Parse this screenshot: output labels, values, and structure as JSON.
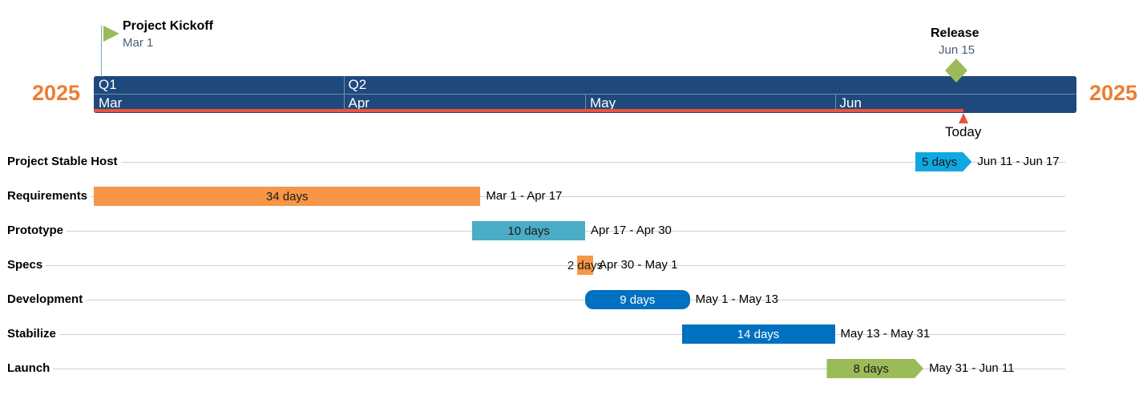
{
  "chart_data": {
    "type": "gantt",
    "year": "2025",
    "quarters": [
      "Q1",
      "Q2"
    ],
    "months": [
      "Mar",
      "Apr",
      "May",
      "Jun"
    ],
    "axis_start": "2025-03-01",
    "axis_end": "2025-06-30",
    "today": {
      "label": "Today",
      "date": "2025-06-20",
      "color": "#e8553a"
    },
    "milestones": [
      {
        "name": "Project Kickoff",
        "date_label": "Mar 1",
        "date": "2025-03-01",
        "shape": "flag",
        "color": "#9bbb59"
      },
      {
        "name": "Release",
        "date_label": "Jun 15",
        "date": "2025-06-15",
        "shape": "diamond",
        "color": "#9bbb59"
      }
    ],
    "tasks": [
      {
        "name": "Project Stable Host",
        "duration": "5 days",
        "range": "Jun 11 - Jun 17",
        "start": "2025-06-11",
        "end": "2025-06-17",
        "color": "#10a8e0",
        "shape": "chevron",
        "text_color": "#1a1a1a"
      },
      {
        "name": "Requirements",
        "duration": "34 days",
        "range": "Mar 1 - Apr 17",
        "start": "2025-03-01",
        "end": "2025-04-17",
        "color": "#f79646",
        "shape": "rect",
        "text_color": "#1a1a1a"
      },
      {
        "name": "Prototype",
        "duration": "10 days",
        "range": "Apr 17 - Apr 30",
        "start": "2025-04-17",
        "end": "2025-04-30",
        "color": "#4bacc6",
        "shape": "rect",
        "text_color": "#1a1a1a"
      },
      {
        "name": "Specs",
        "duration": "2 days",
        "range": "Apr 30 - May 1",
        "start": "2025-04-30",
        "end": "2025-05-01",
        "color": "#f79646",
        "shape": "rect",
        "text_color": "#1a1a1a"
      },
      {
        "name": "Development",
        "duration": "9 days",
        "range": "May 1 - May 13",
        "start": "2025-05-01",
        "end": "2025-05-13",
        "color": "#0070c0",
        "shape": "rounded",
        "text_color": "#ffffff"
      },
      {
        "name": "Stabilize",
        "duration": "14 days",
        "range": "May 13 - May 31",
        "start": "2025-05-13",
        "end": "2025-05-31",
        "color": "#0070c0",
        "shape": "rect",
        "text_color": "#ffffff"
      },
      {
        "name": "Launch",
        "duration": "8 days",
        "range": "May 31 - Jun 11",
        "start": "2025-05-31",
        "end": "2025-06-11",
        "color": "#9bbb59",
        "shape": "chevron",
        "text_color": "#1a1a1a"
      }
    ],
    "colors": {
      "axis": "#1f497d",
      "year": "#ed7d31"
    }
  }
}
